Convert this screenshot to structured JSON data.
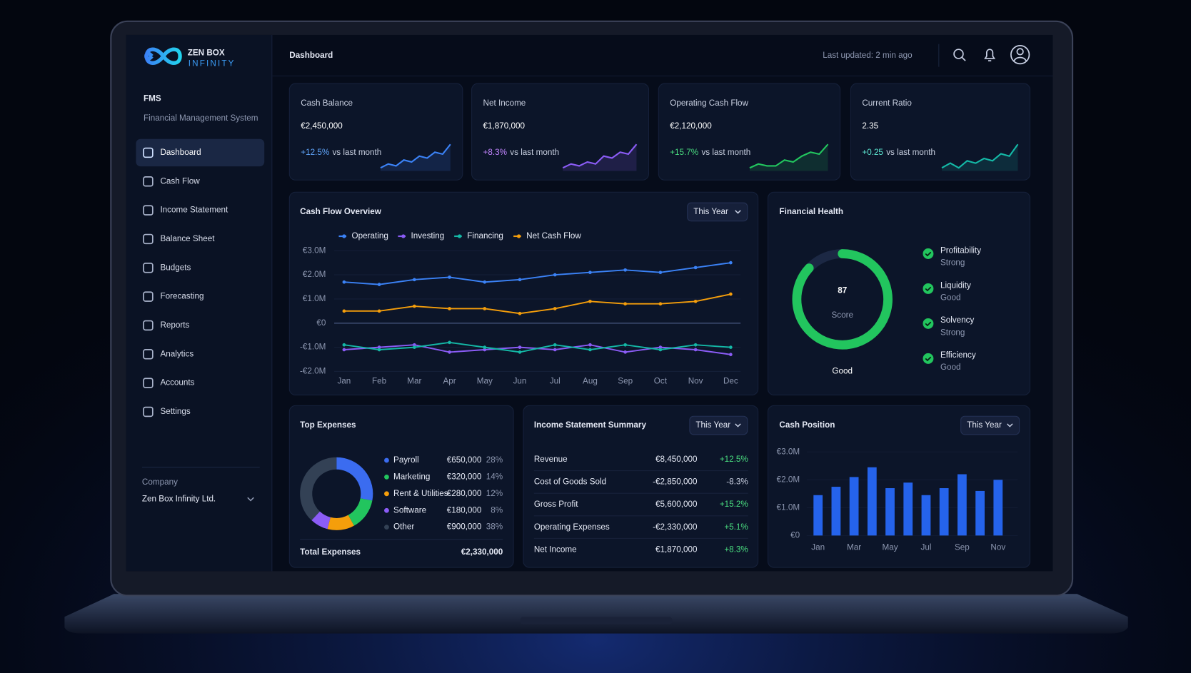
{
  "brand": {
    "name": "ZEN BOX",
    "tagline": "INFINITY"
  },
  "app": {
    "title": "FMS",
    "subtitle": "Financial Management System"
  },
  "nav": [
    "Dashboard",
    "Cash Flow",
    "Income Statement",
    "Balance Sheet",
    "Budgets",
    "Forecasting",
    "Reports",
    "Analytics",
    "Accounts",
    "Settings"
  ],
  "company": {
    "label": "Company",
    "name": "Zen Box Infinity Ltd."
  },
  "header": {
    "title": "Dashboard",
    "updated": "Last updated: 2 min ago"
  },
  "kpis": [
    {
      "label": "Cash Balance",
      "value": "€2,450,000",
      "change": "+12.5%",
      "comparison": "vs last month",
      "color": "#3b82f6",
      "change_color": "#60a5fa",
      "spark": [
        2,
        3,
        2.5,
        4,
        3.5,
        5,
        4.5,
        6,
        5.5,
        8
      ]
    },
    {
      "label": "Net Income",
      "value": "€1,870,000",
      "change": "+8.3%",
      "comparison": "vs last month",
      "color": "#8b5cf6",
      "change_color": "#c084fc",
      "spark": [
        2,
        3,
        2.5,
        3.5,
        3,
        5,
        4.5,
        6,
        5.5,
        8
      ]
    },
    {
      "label": "Operating Cash Flow",
      "value": "€2,120,000",
      "change": "+15.7%",
      "comparison": "vs last month",
      "color": "#22c55e",
      "change_color": "#4ade80",
      "spark": [
        2,
        3,
        2.5,
        2.5,
        4,
        3.5,
        5,
        6,
        5.5,
        8
      ]
    },
    {
      "label": "Current Ratio",
      "value": "2.35",
      "change": "+0.25",
      "comparison": "vs last month",
      "color": "#14b8a6",
      "change_color": "#5eead4",
      "spark": [
        3,
        4,
        3,
        4.5,
        4,
        5,
        4.5,
        6,
        5.5,
        8
      ]
    }
  ],
  "cash_flow_overview": {
    "type": "line",
    "title": "Cash Flow Overview",
    "period": "This Year",
    "categories": [
      "Jan",
      "Feb",
      "Mar",
      "Apr",
      "May",
      "Jun",
      "Jul",
      "Aug",
      "Sep",
      "Oct",
      "Nov",
      "Dec"
    ],
    "series": [
      {
        "name": "Operating",
        "color": "#3b82f6",
        "values": [
          1.7,
          1.6,
          1.8,
          1.9,
          1.7,
          1.8,
          2.0,
          2.1,
          2.2,
          2.1,
          2.3,
          2.5
        ]
      },
      {
        "name": "Investing",
        "color": "#8b5cf6",
        "values": [
          -1.1,
          -1.0,
          -0.9,
          -1.2,
          -1.1,
          -1.0,
          -1.1,
          -0.9,
          -1.2,
          -1.0,
          -1.1,
          -1.3
        ]
      },
      {
        "name": "Financing",
        "color": "#14b8a6",
        "values": [
          -0.9,
          -1.1,
          -1.0,
          -0.8,
          -1.0,
          -1.2,
          -0.9,
          -1.1,
          -0.9,
          -1.1,
          -0.9,
          -1.0
        ]
      },
      {
        "name": "Net Cash Flow",
        "color": "#f59e0b",
        "values": [
          0.5,
          0.5,
          0.7,
          0.6,
          0.6,
          0.4,
          0.6,
          0.9,
          0.8,
          0.8,
          0.9,
          1.2
        ]
      }
    ],
    "ylim": [
      -2,
      3
    ],
    "yticks": [
      {
        "value": 3,
        "label": "€3.0M"
      },
      {
        "value": 2,
        "label": "€2.0M"
      },
      {
        "value": 1,
        "label": "€1.0M"
      },
      {
        "value": 0,
        "label": "€0"
      },
      {
        "value": -1,
        "label": "-€1.0M"
      },
      {
        "value": -2,
        "label": "-€2.0M"
      }
    ],
    "grid": true
  },
  "financial_health": {
    "type": "gauge",
    "title": "Financial Health",
    "score": 87,
    "score_label": "Score",
    "rating": "Good",
    "gauge_lim": [
      0,
      100
    ],
    "color": "#22c55e",
    "items": [
      {
        "name": "Profitability",
        "status": "Strong"
      },
      {
        "name": "Liquidity",
        "status": "Good"
      },
      {
        "name": "Solvency",
        "status": "Strong"
      },
      {
        "name": "Efficiency",
        "status": "Good"
      }
    ]
  },
  "top_expenses": {
    "type": "donut",
    "title": "Top Expenses",
    "categories": [
      "Payroll",
      "Marketing",
      "Rent & Utilities",
      "Software",
      "Other"
    ],
    "amounts": [
      "€650,000",
      "€320,000",
      "€280,000",
      "€180,000",
      "€900,000"
    ],
    "values": [
      28,
      14,
      12,
      8,
      38
    ],
    "value_labels": [
      "28%",
      "14%",
      "12%",
      "8%",
      "38%"
    ],
    "colors": [
      "#3b6cf0",
      "#22c55e",
      "#f59e0b",
      "#8b5cf6",
      "#334155"
    ],
    "total_label": "Total Expenses",
    "total": "€2,330,000"
  },
  "income_statement": {
    "title": "Income Statement Summary",
    "period": "This Year",
    "rows": [
      [
        "Revenue",
        "€8,450,000",
        "+12.5%"
      ],
      [
        "Cost of Goods Sold",
        "-€2,850,000",
        "-8.3%"
      ],
      [
        "Gross Profit",
        "€5,600,000",
        "+15.2%"
      ],
      [
        "Operating Expenses",
        "-€2,330,000",
        "+5.1%"
      ],
      [
        "Net Income",
        "€1,870,000",
        "+8.3%"
      ]
    ]
  },
  "cash_position": {
    "type": "bar",
    "title": "Cash Position",
    "period": "This Year",
    "categories": [
      "Jan",
      null,
      "Mar",
      null,
      "May",
      null,
      "Jul",
      null,
      "Sep",
      null,
      "Nov"
    ],
    "values": [
      1.45,
      1.75,
      2.1,
      2.45,
      1.7,
      1.9,
      1.45,
      1.7,
      2.2,
      1.6,
      2.0
    ],
    "color": "#2563eb",
    "ylim": [
      0,
      3
    ],
    "yticks": [
      {
        "value": 0,
        "label": "€0"
      },
      {
        "value": 1,
        "label": "€1.0M"
      },
      {
        "value": 2,
        "label": "€2.0M"
      },
      {
        "value": 3,
        "label": "€3.0M"
      }
    ]
  }
}
